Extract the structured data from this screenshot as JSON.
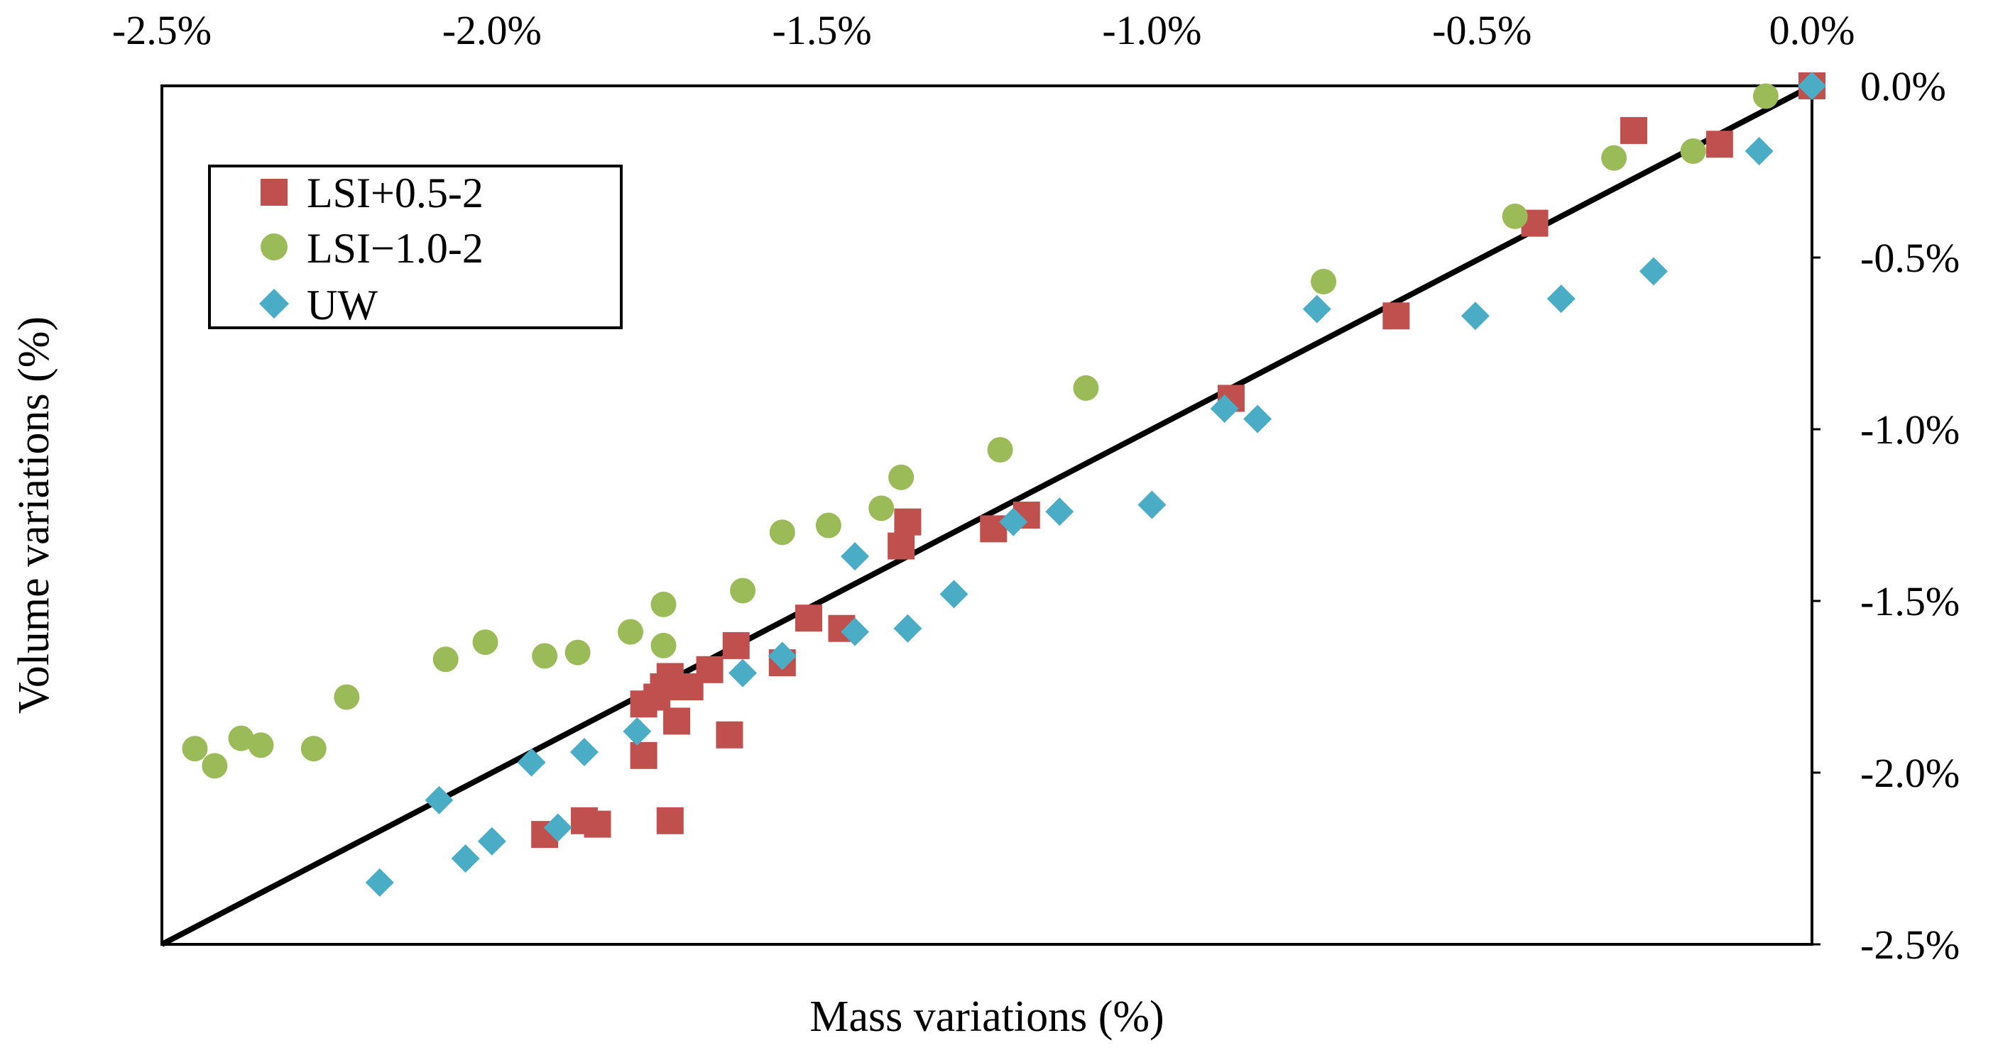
{
  "chart_data": {
    "type": "scatter",
    "title": "",
    "xlabel": "Mass variations  (%)",
    "ylabel": "Volume variations  (%)",
    "xlim": [
      -2.5,
      0.0
    ],
    "ylim": [
      -2.5,
      0.0
    ],
    "x_ticks": [
      -2.5,
      -2.0,
      -1.5,
      -1.0,
      -0.5,
      0.0
    ],
    "x_tick_labels": [
      "-2.5%",
      "-2.0%",
      "-1.5%",
      "-1.0%",
      "-0.5%",
      "0.0%"
    ],
    "y_ticks": [
      0.0,
      -0.5,
      -1.0,
      -1.5,
      -2.0,
      -2.5
    ],
    "y_tick_labels": [
      "0.0%",
      "-0.5%",
      "-1.0%",
      "-1.5%",
      "-2.0%",
      "-2.5%"
    ],
    "x_axis_position": "top",
    "y_axis_position": "right",
    "grid": false,
    "legend_position": "top-left",
    "reference_line": {
      "name": "y = x",
      "points": [
        [
          -2.5,
          -2.5
        ],
        [
          0.0,
          0.0
        ]
      ],
      "color": "#000000"
    },
    "series": [
      {
        "name": "LSI+0.5-2",
        "marker": "square",
        "color": "#c0504d",
        "points": [
          [
            0.0,
            0.0
          ],
          [
            -0.27,
            -0.13
          ],
          [
            -0.14,
            -0.17
          ],
          [
            -0.42,
            -0.4
          ],
          [
            -0.63,
            -0.67
          ],
          [
            -0.88,
            -0.91
          ],
          [
            -1.19,
            -1.25
          ],
          [
            -1.24,
            -1.29
          ],
          [
            -1.37,
            -1.27
          ],
          [
            -1.38,
            -1.34
          ],
          [
            -1.47,
            -1.58
          ],
          [
            -1.52,
            -1.55
          ],
          [
            -1.56,
            -1.68
          ],
          [
            -1.63,
            -1.63
          ],
          [
            -1.67,
            -1.7
          ],
          [
            -1.7,
            -1.75
          ],
          [
            -1.73,
            -1.72
          ],
          [
            -1.74,
            -1.75
          ],
          [
            -1.75,
            -1.78
          ],
          [
            -1.77,
            -1.8
          ],
          [
            -1.72,
            -1.85
          ],
          [
            -1.64,
            -1.89
          ],
          [
            -1.77,
            -1.95
          ],
          [
            -1.73,
            -2.14
          ],
          [
            -1.84,
            -2.15
          ],
          [
            -1.86,
            -2.14
          ],
          [
            -1.92,
            -2.18
          ]
        ]
      },
      {
        "name": "LSI−1.0-2",
        "marker": "circle",
        "color": "#9bbb59",
        "points": [
          [
            -0.07,
            -0.03
          ],
          [
            -0.18,
            -0.19
          ],
          [
            -0.3,
            -0.21
          ],
          [
            -0.45,
            -0.38
          ],
          [
            -0.74,
            -0.57
          ],
          [
            -1.1,
            -0.88
          ],
          [
            -1.23,
            -1.06
          ],
          [
            -1.38,
            -1.14
          ],
          [
            -1.41,
            -1.23
          ],
          [
            -1.49,
            -1.28
          ],
          [
            -1.56,
            -1.3
          ],
          [
            -1.62,
            -1.47
          ],
          [
            -1.74,
            -1.51
          ],
          [
            -1.74,
            -1.63
          ],
          [
            -1.79,
            -1.59
          ],
          [
            -1.87,
            -1.65
          ],
          [
            -1.92,
            -1.66
          ],
          [
            -2.01,
            -1.62
          ],
          [
            -2.07,
            -1.67
          ],
          [
            -2.22,
            -1.78
          ],
          [
            -2.27,
            -1.93
          ],
          [
            -2.35,
            -1.92
          ],
          [
            -2.38,
            -1.9
          ],
          [
            -2.42,
            -1.98
          ],
          [
            -2.45,
            -1.93
          ]
        ]
      },
      {
        "name": "UW",
        "marker": "diamond",
        "color": "#4bacc6",
        "points": [
          [
            0.0,
            0.0
          ],
          [
            -0.08,
            -0.19
          ],
          [
            -0.24,
            -0.54
          ],
          [
            -0.38,
            -0.62
          ],
          [
            -0.51,
            -0.67
          ],
          [
            -0.75,
            -0.65
          ],
          [
            -0.84,
            -0.97
          ],
          [
            -0.89,
            -0.94
          ],
          [
            -1.0,
            -1.22
          ],
          [
            -1.14,
            -1.24
          ],
          [
            -1.21,
            -1.27
          ],
          [
            -1.3,
            -1.48
          ],
          [
            -1.37,
            -1.58
          ],
          [
            -1.45,
            -1.37
          ],
          [
            -1.45,
            -1.59
          ],
          [
            -1.56,
            -1.66
          ],
          [
            -1.62,
            -1.71
          ],
          [
            -1.78,
            -1.88
          ],
          [
            -1.86,
            -1.94
          ],
          [
            -1.94,
            -1.97
          ],
          [
            -1.9,
            -2.16
          ],
          [
            -2.0,
            -2.2
          ],
          [
            -2.04,
            -2.25
          ],
          [
            -2.08,
            -2.08
          ],
          [
            -2.17,
            -2.32
          ]
        ]
      }
    ]
  }
}
